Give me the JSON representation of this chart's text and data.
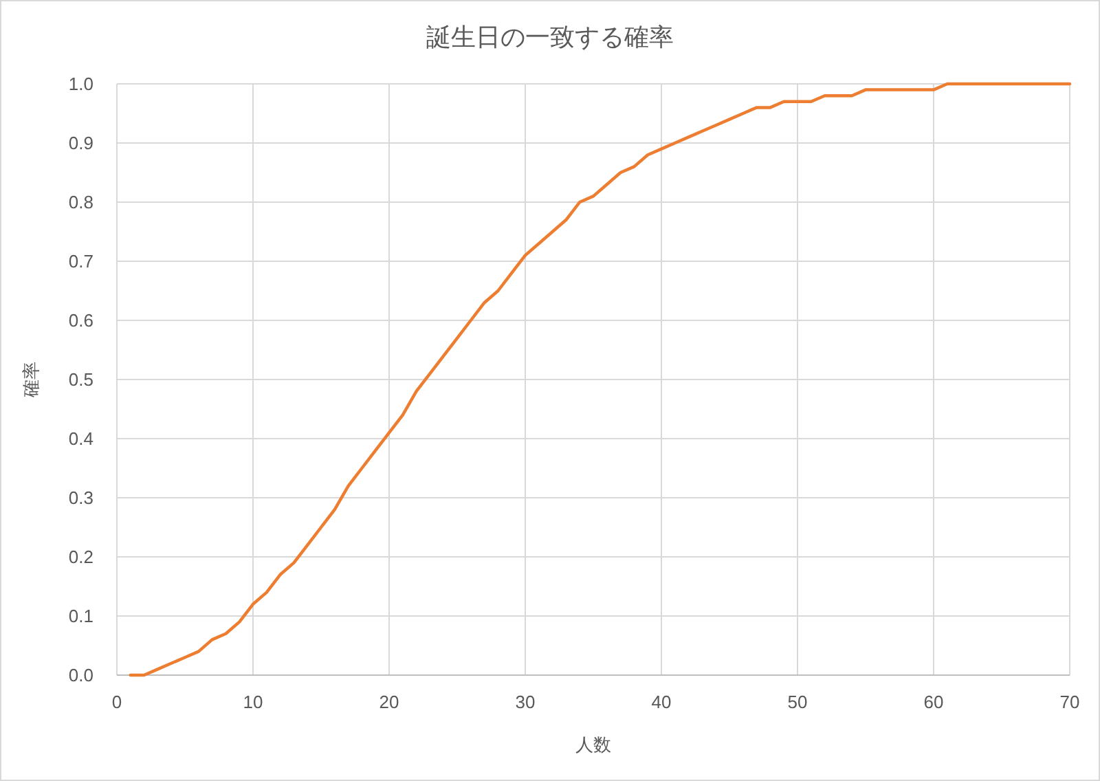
{
  "chart_data": {
    "type": "line",
    "title": "誕生日の一致する確率",
    "xlabel": "人数",
    "ylabel": "確率",
    "grid": true,
    "marker": "none",
    "line_style": "solid",
    "xlim": [
      0,
      70
    ],
    "xticks": [
      0,
      10,
      20,
      30,
      40,
      50,
      60,
      70
    ],
    "ylim": [
      0,
      1
    ],
    "yticks": [
      {
        "value": 0,
        "label": "0.0"
      },
      {
        "value": 0.1,
        "label": "0.1"
      },
      {
        "value": 0.2,
        "label": "0.2"
      },
      {
        "value": 0.3,
        "label": "0.3"
      },
      {
        "value": 0.4,
        "label": "0.4"
      },
      {
        "value": 0.5,
        "label": "0.5"
      },
      {
        "value": 0.6,
        "label": "0.6"
      },
      {
        "value": 0.7,
        "label": "0.7"
      },
      {
        "value": 0.8,
        "label": "0.8"
      },
      {
        "value": 0.9,
        "label": "0.9"
      },
      {
        "value": 1,
        "label": "1.0"
      }
    ],
    "x": [
      1,
      2,
      3,
      4,
      5,
      6,
      7,
      8,
      9,
      10,
      11,
      12,
      13,
      14,
      15,
      16,
      17,
      18,
      19,
      20,
      21,
      22,
      23,
      24,
      25,
      26,
      27,
      28,
      29,
      30,
      31,
      32,
      33,
      34,
      35,
      36,
      37,
      38,
      39,
      40,
      41,
      42,
      43,
      44,
      45,
      46,
      47,
      48,
      49,
      50,
      51,
      52,
      53,
      54,
      55,
      56,
      57,
      58,
      59,
      60,
      61,
      62,
      63,
      64,
      65,
      66,
      67,
      68,
      69,
      70
    ],
    "series": [
      {
        "color": "#ed7d31",
        "values": [
          0,
          0,
          0.01,
          0.02,
          0.03,
          0.04,
          0.06,
          0.07,
          0.09,
          0.12,
          0.14,
          0.17,
          0.19,
          0.22,
          0.25,
          0.28,
          0.32,
          0.35,
          0.38,
          0.41,
          0.44,
          0.48,
          0.51,
          0.54,
          0.57,
          0.6,
          0.63,
          0.65,
          0.68,
          0.71,
          0.73,
          0.75,
          0.77,
          0.8,
          0.81,
          0.83,
          0.85,
          0.86,
          0.88,
          0.89,
          0.9,
          0.91,
          0.92,
          0.93,
          0.94,
          0.95,
          0.96,
          0.96,
          0.97,
          0.97,
          0.97,
          0.98,
          0.98,
          0.98,
          0.99,
          0.99,
          0.99,
          0.99,
          0.99,
          0.99,
          1,
          1,
          1,
          1,
          1,
          1,
          1,
          1,
          1,
          1
        ]
      }
    ]
  }
}
